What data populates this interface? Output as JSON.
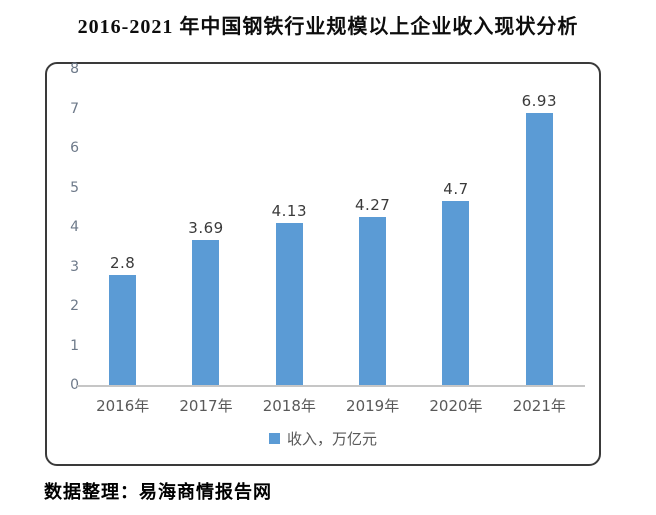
{
  "title": "2016-2021 年中国钢铁行业规模以上企业收入现状分析",
  "source": "数据整理：易海商情报告网",
  "legend": {
    "label": "收入，万亿元"
  },
  "colors": {
    "bar": "#5B9BD5",
    "legend_marker": "#5B9BD5",
    "axis_line": "#C6C6C6",
    "ytick_text": "#6D7989",
    "xtick_text": "#595959",
    "value_label_text": "#3A3A3A",
    "frame_border": "#3A3A3A",
    "title_text": "#0D0D0D"
  },
  "chart_data": {
    "type": "bar",
    "title": "2016-2021 年中国钢铁行业规模以上企业收入现状分析",
    "categories": [
      "2016年",
      "2017年",
      "2018年",
      "2019年",
      "2020年",
      "2021年"
    ],
    "values": [
      2.8,
      3.69,
      4.13,
      4.27,
      4.7,
      6.93
    ],
    "data_labels": [
      "2.8",
      "3.69",
      "4.13",
      "4.27",
      "4.7",
      "6.93"
    ],
    "series_name": "收入，万亿元",
    "xlabel": "",
    "ylabel": "",
    "ylim": [
      0,
      8
    ],
    "ytick_interval": 1,
    "grid": false,
    "legend_position": "bottom",
    "source_note": "数据整理：易海商情报告网"
  }
}
